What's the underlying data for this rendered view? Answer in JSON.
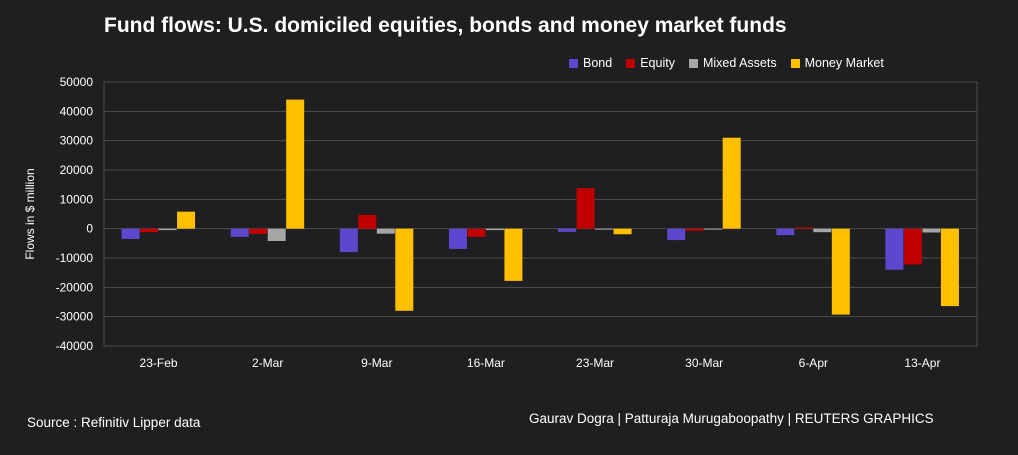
{
  "chart_data": {
    "type": "bar",
    "title": "Fund flows: U.S. domiciled equities, bonds and money market funds",
    "xlabel": "",
    "ylabel": "Flows in $ million",
    "ylim": [
      -40000,
      50000
    ],
    "yticks": [
      50000,
      40000,
      30000,
      20000,
      10000,
      0,
      -10000,
      -20000,
      -30000,
      -40000
    ],
    "grid": true,
    "legend_position": "top-right",
    "categories": [
      "23-Feb",
      "2-Mar",
      "9-Mar",
      "16-Mar",
      "23-Mar",
      "30-Mar",
      "6-Apr",
      "13-Apr"
    ],
    "series": [
      {
        "name": "Bond",
        "color": "#5b48cc",
        "values": [
          -3500,
          -2800,
          -8000,
          -6900,
          -1100,
          -3900,
          -2200,
          -14000
        ]
      },
      {
        "name": "Equity",
        "color": "#c00000",
        "values": [
          -1200,
          -1800,
          4700,
          -2800,
          13800,
          -700,
          400,
          -12200
        ]
      },
      {
        "name": "Mixed Assets",
        "color": "#a6a6a6",
        "values": [
          -500,
          -4200,
          -1700,
          -500,
          -300,
          -200,
          -1200,
          -1300
        ]
      },
      {
        "name": "Money Market",
        "color": "#ffc000",
        "values": [
          5800,
          44000,
          -28000,
          -17800,
          -1900,
          31000,
          -29300,
          -26400
        ]
      }
    ]
  },
  "footer": {
    "source": "Source : Refinitiv Lipper data",
    "credit": "Gaurav Dogra | Patturaja Murugaboopathy | REUTERS GRAPHICS"
  },
  "colors": {
    "background": "#1f1e20",
    "gridline": "#4d4d4d",
    "text": "#ffffff"
  }
}
